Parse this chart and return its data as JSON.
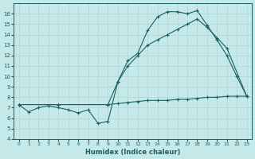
{
  "xlabel": "Humidex (Indice chaleur)",
  "xlim": [
    -0.5,
    23.5
  ],
  "ylim": [
    4,
    17
  ],
  "xticks": [
    0,
    1,
    2,
    3,
    4,
    5,
    6,
    7,
    8,
    9,
    10,
    11,
    12,
    13,
    14,
    15,
    16,
    17,
    18,
    19,
    20,
    21,
    22,
    23
  ],
  "yticks": [
    4,
    5,
    6,
    7,
    8,
    9,
    10,
    11,
    12,
    13,
    14,
    15,
    16
  ],
  "bg_color": "#c5e8e8",
  "line_color": "#1a6060",
  "grid_color": "#aed4d4",
  "line1_x": [
    0,
    1,
    2,
    3,
    4,
    5,
    6,
    7,
    8,
    9,
    10,
    11,
    12,
    13,
    14,
    15,
    16,
    17,
    18,
    19,
    20,
    21,
    22,
    23
  ],
  "line1_y": [
    7.3,
    6.6,
    7.0,
    7.2,
    7.0,
    6.8,
    6.5,
    6.8,
    5.5,
    5.7,
    9.5,
    11.5,
    12.2,
    14.4,
    15.7,
    16.2,
    16.2,
    16.0,
    16.3,
    14.9,
    13.5,
    12.0,
    10.0,
    8.1
  ],
  "line2_x": [
    0,
    4,
    9,
    10,
    11,
    12,
    13,
    14,
    15,
    16,
    17,
    18,
    19,
    20,
    21,
    23
  ],
  "line2_y": [
    7.3,
    7.3,
    7.3,
    9.5,
    11.0,
    12.0,
    13.0,
    13.5,
    14.0,
    14.5,
    15.0,
    15.5,
    14.7,
    13.7,
    12.7,
    8.1
  ],
  "line3_x": [
    0,
    4,
    9,
    10,
    11,
    12,
    13,
    14,
    15,
    16,
    17,
    18,
    19,
    20,
    21,
    22,
    23
  ],
  "line3_y": [
    7.3,
    7.3,
    7.3,
    7.4,
    7.5,
    7.6,
    7.7,
    7.7,
    7.7,
    7.8,
    7.8,
    7.9,
    8.0,
    8.0,
    8.1,
    8.1,
    8.1
  ]
}
